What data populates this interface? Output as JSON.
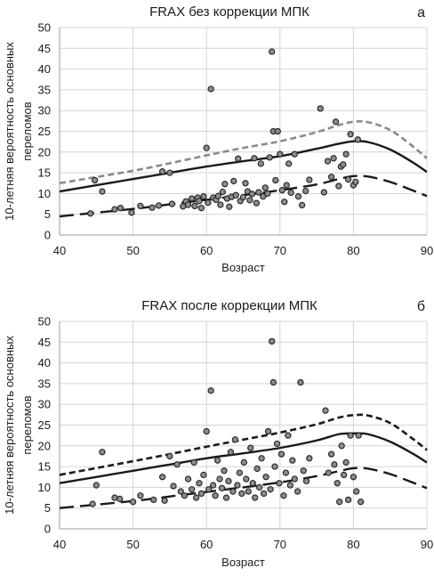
{
  "chart_data": [
    {
      "panel": "а",
      "type": "scatter",
      "title": "FRAX без коррекции МПК",
      "xlabel": "Возраст",
      "ylabel_line1": "10-летняя вероятность основных",
      "ylabel_line2": "переломов",
      "xlim": [
        40,
        90
      ],
      "ylim": [
        0,
        50
      ],
      "xticks": [
        "40",
        "50",
        "60",
        "70",
        "80",
        "90"
      ],
      "yticks": [
        "0",
        "5",
        "10",
        "15",
        "20",
        "25",
        "30",
        "35",
        "40",
        "45",
        "50"
      ],
      "grid": true,
      "curves": {
        "upper": {
          "style": "dashed-short",
          "color": "#8a8a8a",
          "x": [
            40,
            50,
            55,
            60,
            65,
            70,
            75,
            78,
            80,
            82,
            85,
            88,
            90
          ],
          "y": [
            12.5,
            15.5,
            17.3,
            19.2,
            21.0,
            22.6,
            24.8,
            26.5,
            27.3,
            27.2,
            25.3,
            21.5,
            18.5
          ]
        },
        "middle": {
          "style": "solid",
          "color": "#1a1a1a",
          "x": [
            40,
            50,
            55,
            60,
            65,
            70,
            75,
            78,
            80,
            82,
            85,
            88,
            90
          ],
          "y": [
            10.5,
            13.5,
            15.0,
            16.5,
            17.8,
            19.0,
            20.8,
            22.0,
            22.6,
            22.4,
            20.6,
            17.6,
            15.2
          ]
        },
        "lower": {
          "style": "dashed-long",
          "color": "#1a1a1a",
          "x": [
            40,
            50,
            55,
            60,
            65,
            70,
            75,
            78,
            80,
            82,
            85,
            88,
            90
          ],
          "y": [
            4.5,
            6.3,
            7.4,
            8.5,
            9.6,
            10.8,
            12.2,
            13.5,
            14.2,
            14.1,
            12.8,
            10.8,
            9.4
          ]
        }
      },
      "points": [
        [
          44.2,
          5.2
        ],
        [
          44.8,
          13.2
        ],
        [
          45.8,
          10.5
        ],
        [
          47.5,
          6.2
        ],
        [
          48.3,
          6.5
        ],
        [
          49.8,
          5.4
        ],
        [
          51.0,
          7.0
        ],
        [
          52.6,
          6.6
        ],
        [
          53.5,
          7.1
        ],
        [
          54.0,
          15.3
        ],
        [
          55.0,
          15.0
        ],
        [
          55.3,
          7.5
        ],
        [
          56.8,
          6.9
        ],
        [
          57.2,
          8.1
        ],
        [
          57.5,
          7.3
        ],
        [
          58.0,
          8.8
        ],
        [
          58.4,
          7.0
        ],
        [
          58.8,
          9.0
        ],
        [
          59.0,
          8.2
        ],
        [
          59.3,
          6.5
        ],
        [
          59.6,
          9.3
        ],
        [
          60.0,
          21.0
        ],
        [
          60.2,
          7.8
        ],
        [
          60.6,
          35.2
        ],
        [
          60.9,
          9.0
        ],
        [
          61.3,
          8.5
        ],
        [
          61.6,
          9.4
        ],
        [
          61.9,
          7.3
        ],
        [
          62.2,
          10.4
        ],
        [
          62.5,
          12.3
        ],
        [
          62.8,
          8.8
        ],
        [
          63.1,
          6.8
        ],
        [
          63.4,
          9.2
        ],
        [
          63.7,
          13.0
        ],
        [
          64.0,
          9.6
        ],
        [
          64.3,
          18.4
        ],
        [
          64.6,
          8.2
        ],
        [
          65.0,
          9.1
        ],
        [
          65.3,
          12.5
        ],
        [
          65.6,
          10.5
        ],
        [
          65.9,
          8.4
        ],
        [
          66.2,
          9.9
        ],
        [
          66.5,
          18.5
        ],
        [
          66.8,
          7.7
        ],
        [
          67.1,
          10.3
        ],
        [
          67.4,
          17.2
        ],
        [
          67.7,
          9.3
        ],
        [
          68.0,
          11.4
        ],
        [
          68.3,
          10.0
        ],
        [
          68.6,
          18.7
        ],
        [
          68.9,
          44.2
        ],
        [
          69.1,
          25.0
        ],
        [
          69.4,
          13.2
        ],
        [
          69.7,
          25.0
        ],
        [
          70.0,
          19.5
        ],
        [
          70.3,
          10.8
        ],
        [
          70.6,
          8.0
        ],
        [
          70.9,
          12.0
        ],
        [
          71.2,
          17.2
        ],
        [
          71.5,
          10.2
        ],
        [
          72.0,
          19.5
        ],
        [
          72.5,
          9.3
        ],
        [
          73.0,
          7.2
        ],
        [
          73.5,
          10.6
        ],
        [
          74.0,
          13.3
        ],
        [
          75.5,
          30.5
        ],
        [
          76.0,
          10.3
        ],
        [
          76.5,
          17.8
        ],
        [
          77.0,
          14.0
        ],
        [
          77.3,
          18.5
        ],
        [
          77.6,
          27.3
        ],
        [
          78.0,
          11.8
        ],
        [
          78.3,
          16.5
        ],
        [
          78.6,
          17.0
        ],
        [
          79.0,
          19.5
        ],
        [
          79.3,
          13.4
        ],
        [
          79.6,
          24.3
        ],
        [
          80.0,
          12.0
        ],
        [
          80.3,
          12.8
        ],
        [
          80.6,
          23.0
        ]
      ]
    },
    {
      "panel": "б",
      "type": "scatter",
      "title": "FRAX после коррекции МПК",
      "xlabel": "Возраст",
      "ylabel_line1": "10-летняя вероятность основных",
      "ylabel_line2": "переломов",
      "xlim": [
        40,
        90
      ],
      "ylim": [
        0,
        50
      ],
      "xticks": [
        "40",
        "50",
        "60",
        "70",
        "80",
        "90"
      ],
      "yticks": [
        "0",
        "5",
        "10",
        "15",
        "20",
        "25",
        "30",
        "35",
        "40",
        "45",
        "50"
      ],
      "grid": true,
      "curves": {
        "upper": {
          "style": "dashed-short",
          "color": "#1a1a1a",
          "x": [
            40,
            50,
            55,
            60,
            65,
            70,
            75,
            78,
            80,
            82,
            85,
            88,
            90
          ],
          "y": [
            13.0,
            16.3,
            18.0,
            19.8,
            21.5,
            23.2,
            25.2,
            26.8,
            27.4,
            27.3,
            25.5,
            21.8,
            19.0
          ]
        },
        "middle": {
          "style": "solid",
          "color": "#1a1a1a",
          "x": [
            40,
            50,
            55,
            60,
            65,
            70,
            75,
            78,
            80,
            82,
            85,
            88,
            90
          ],
          "y": [
            11.0,
            14.0,
            15.5,
            17.0,
            18.2,
            19.5,
            21.3,
            22.8,
            23.0,
            22.8,
            21.0,
            18.2,
            16.0
          ]
        },
        "lower": {
          "style": "dashed-long",
          "color": "#1a1a1a",
          "x": [
            40,
            50,
            55,
            60,
            65,
            70,
            75,
            78,
            80,
            82,
            85,
            88,
            90
          ],
          "y": [
            5.0,
            6.7,
            7.8,
            8.9,
            10.0,
            11.2,
            12.7,
            13.9,
            14.6,
            14.5,
            13.2,
            11.2,
            9.8
          ]
        }
      },
      "points": [
        [
          44.5,
          6.0
        ],
        [
          45.0,
          10.5
        ],
        [
          45.8,
          18.5
        ],
        [
          47.5,
          7.5
        ],
        [
          48.2,
          7.2
        ],
        [
          50.0,
          6.5
        ],
        [
          51.0,
          8.0
        ],
        [
          52.8,
          7.0
        ],
        [
          54.0,
          12.5
        ],
        [
          54.3,
          6.8
        ],
        [
          55.0,
          17.5
        ],
        [
          55.5,
          10.3
        ],
        [
          56.0,
          15.5
        ],
        [
          56.5,
          9.0
        ],
        [
          57.0,
          8.0
        ],
        [
          57.5,
          12.0
        ],
        [
          58.0,
          9.5
        ],
        [
          58.3,
          16.0
        ],
        [
          58.6,
          7.5
        ],
        [
          59.0,
          11.0
        ],
        [
          59.3,
          8.5
        ],
        [
          59.6,
          13.0
        ],
        [
          60.0,
          23.5
        ],
        [
          60.3,
          9.5
        ],
        [
          60.6,
          33.3
        ],
        [
          60.9,
          10.5
        ],
        [
          61.2,
          8.0
        ],
        [
          61.5,
          16.5
        ],
        [
          61.8,
          12.0
        ],
        [
          62.1,
          9.8
        ],
        [
          62.4,
          14.0
        ],
        [
          62.7,
          7.5
        ],
        [
          63.0,
          11.5
        ],
        [
          63.3,
          18.5
        ],
        [
          63.6,
          9.0
        ],
        [
          63.9,
          21.5
        ],
        [
          64.2,
          10.5
        ],
        [
          64.5,
          13.5
        ],
        [
          64.8,
          8.5
        ],
        [
          65.1,
          16.0
        ],
        [
          65.4,
          12.0
        ],
        [
          65.7,
          9.0
        ],
        [
          66.0,
          19.5
        ],
        [
          66.3,
          11.0
        ],
        [
          66.6,
          7.5
        ],
        [
          66.9,
          14.5
        ],
        [
          67.2,
          10.0
        ],
        [
          67.5,
          17.0
        ],
        [
          67.8,
          8.5
        ],
        [
          68.1,
          12.5
        ],
        [
          68.4,
          23.5
        ],
        [
          68.7,
          9.5
        ],
        [
          68.9,
          45.2
        ],
        [
          69.1,
          35.3
        ],
        [
          69.3,
          15.0
        ],
        [
          69.6,
          20.5
        ],
        [
          69.9,
          11.0
        ],
        [
          70.2,
          18.0
        ],
        [
          70.5,
          8.0
        ],
        [
          70.8,
          13.5
        ],
        [
          71.1,
          22.5
        ],
        [
          71.4,
          10.5
        ],
        [
          71.7,
          16.5
        ],
        [
          72.0,
          12.0
        ],
        [
          72.4,
          9.0
        ],
        [
          72.8,
          35.3
        ],
        [
          73.2,
          14.0
        ],
        [
          73.6,
          11.5
        ],
        [
          74.0,
          17.0
        ],
        [
          76.2,
          28.5
        ],
        [
          76.6,
          13.5
        ],
        [
          77.0,
          18.0
        ],
        [
          77.4,
          15.5
        ],
        [
          77.8,
          11.0
        ],
        [
          78.1,
          6.5
        ],
        [
          78.4,
          20.0
        ],
        [
          78.7,
          13.0
        ],
        [
          79.0,
          16.0
        ],
        [
          79.3,
          7.0
        ],
        [
          79.6,
          22.5
        ],
        [
          80.0,
          12.5
        ],
        [
          80.4,
          9.0
        ],
        [
          80.7,
          22.5
        ],
        [
          81.0,
          6.5
        ]
      ]
    }
  ]
}
